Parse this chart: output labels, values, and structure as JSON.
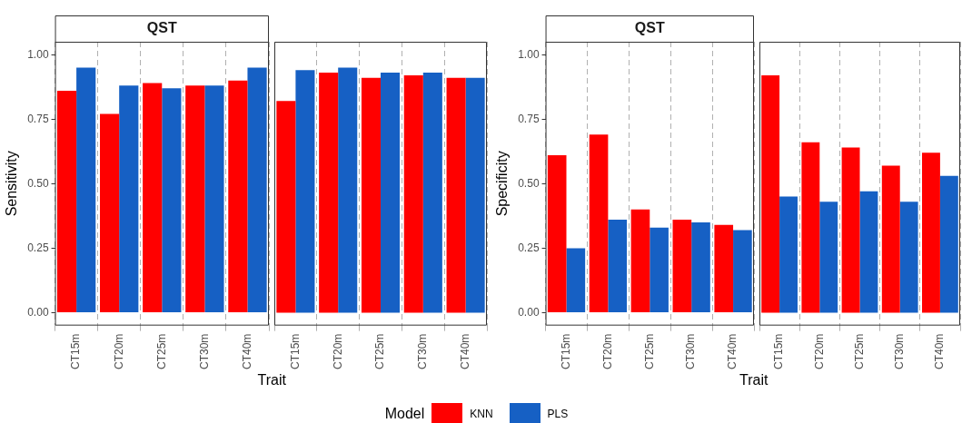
{
  "chart_data": [
    {
      "type": "bar",
      "title": "QST",
      "xlabel": "Trait",
      "ylabel": "Sensitivity",
      "legend": "bottom",
      "legend_title": "Model",
      "categories": [
        "CT15m",
        "CT20m",
        "CT25m",
        "CT30m",
        "CT40m"
      ],
      "series": [
        {
          "name": "KNN",
          "color": "#ff0000",
          "values": [
            0.86,
            0.77,
            0.89,
            0.88,
            0.9
          ]
        },
        {
          "name": "PLS",
          "color": "#1660c4",
          "values": [
            0.95,
            0.88,
            0.87,
            0.88,
            0.95
          ]
        }
      ],
      "ylim": [
        -0.05,
        1.05
      ],
      "yticks": [
        {
          "value": 0,
          "label": "0.00"
        },
        {
          "value": 0.25,
          "label": "0.25"
        },
        {
          "value": 0.5,
          "label": "0.50"
        },
        {
          "value": 0.75,
          "label": "0.75"
        },
        {
          "value": 1,
          "label": "1.00"
        }
      ],
      "grid": "x"
    },
    {
      "type": "bar",
      "categories": [
        "CT15m",
        "CT20m",
        "CT25m",
        "CT30m",
        "CT40m"
      ],
      "series": [
        {
          "color": "#ff0000",
          "values": [
            0.82,
            0.93,
            0.91,
            0.92,
            0.91
          ]
        },
        {
          "color": "#1660c4",
          "values": [
            0.94,
            0.95,
            0.93,
            0.93,
            0.91
          ]
        }
      ],
      "ylim": [
        -0.05,
        1.05
      ],
      "grid": "x",
      "tick_labels": "x"
    },
    {
      "type": "bar",
      "title": "QST",
      "xlabel": "Trait",
      "ylabel": "Specificity",
      "categories": [
        "CT15m",
        "CT20m",
        "CT25m",
        "CT30m",
        "CT40m"
      ],
      "series": [
        {
          "color": "#ff0000",
          "values": [
            0.61,
            0.69,
            0.4,
            0.36,
            0.34
          ]
        },
        {
          "color": "#1660c4",
          "values": [
            0.25,
            0.36,
            0.33,
            0.35,
            0.32
          ]
        }
      ],
      "ylim": [
        -0.05,
        1.05
      ],
      "yticks": [
        {
          "value": 0,
          "label": "0.00"
        },
        {
          "value": 0.25,
          "label": "0.25"
        },
        {
          "value": 0.5,
          "label": "0.50"
        },
        {
          "value": 0.75,
          "label": "0.75"
        },
        {
          "value": 1,
          "label": "1.00"
        }
      ],
      "grid": "x"
    },
    {
      "type": "bar",
      "categories": [
        "CT15m",
        "CT20m",
        "CT25m",
        "CT30m",
        "CT40m"
      ],
      "series": [
        {
          "color": "#ff0000",
          "values": [
            0.92,
            0.66,
            0.64,
            0.57,
            0.62
          ]
        },
        {
          "color": "#1660c4",
          "values": [
            0.45,
            0.43,
            0.47,
            0.43,
            0.53
          ]
        }
      ],
      "ylim": [
        -0.05,
        1.05
      ],
      "grid": "x",
      "tick_labels": "x"
    }
  ]
}
